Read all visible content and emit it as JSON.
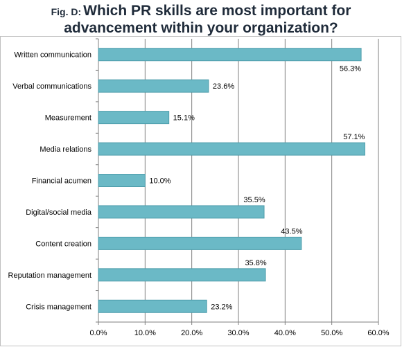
{
  "title": {
    "prefix": "Fig. D:",
    "line1": "Which PR skills are most important for",
    "line2": "advancement within your organization?"
  },
  "colors": {
    "bar_fill": "#6bb9c6",
    "bar_stroke": "#4e9dab",
    "gridline": "#7f7f7f",
    "axis": "#7f7f7f"
  },
  "chart_data": {
    "type": "bar",
    "orientation": "horizontal",
    "categories": [
      "Written communication",
      "Verbal communications",
      "Measurement",
      "Media relations",
      "Financial acumen",
      "Digital/social media",
      "Content creation",
      "Reputation management",
      "Crisis management"
    ],
    "values": [
      56.3,
      23.6,
      15.1,
      57.1,
      10.0,
      35.5,
      43.5,
      35.8,
      23.2
    ],
    "value_labels": [
      "56.3%",
      "23.6%",
      "15.1%",
      "57.1%",
      "10.0%",
      "35.5%",
      "43.5%",
      "35.8%",
      "23.2%"
    ],
    "xlim": [
      0,
      60
    ],
    "x_ticks": [
      0,
      10,
      20,
      30,
      40,
      50,
      60
    ],
    "x_tick_labels": [
      "0.0%",
      "10.0%",
      "20.0%",
      "30.0%",
      "40.0%",
      "50.0%",
      "60.0%"
    ],
    "xlabel": "",
    "ylabel": "",
    "grid": true,
    "legend": "none"
  }
}
